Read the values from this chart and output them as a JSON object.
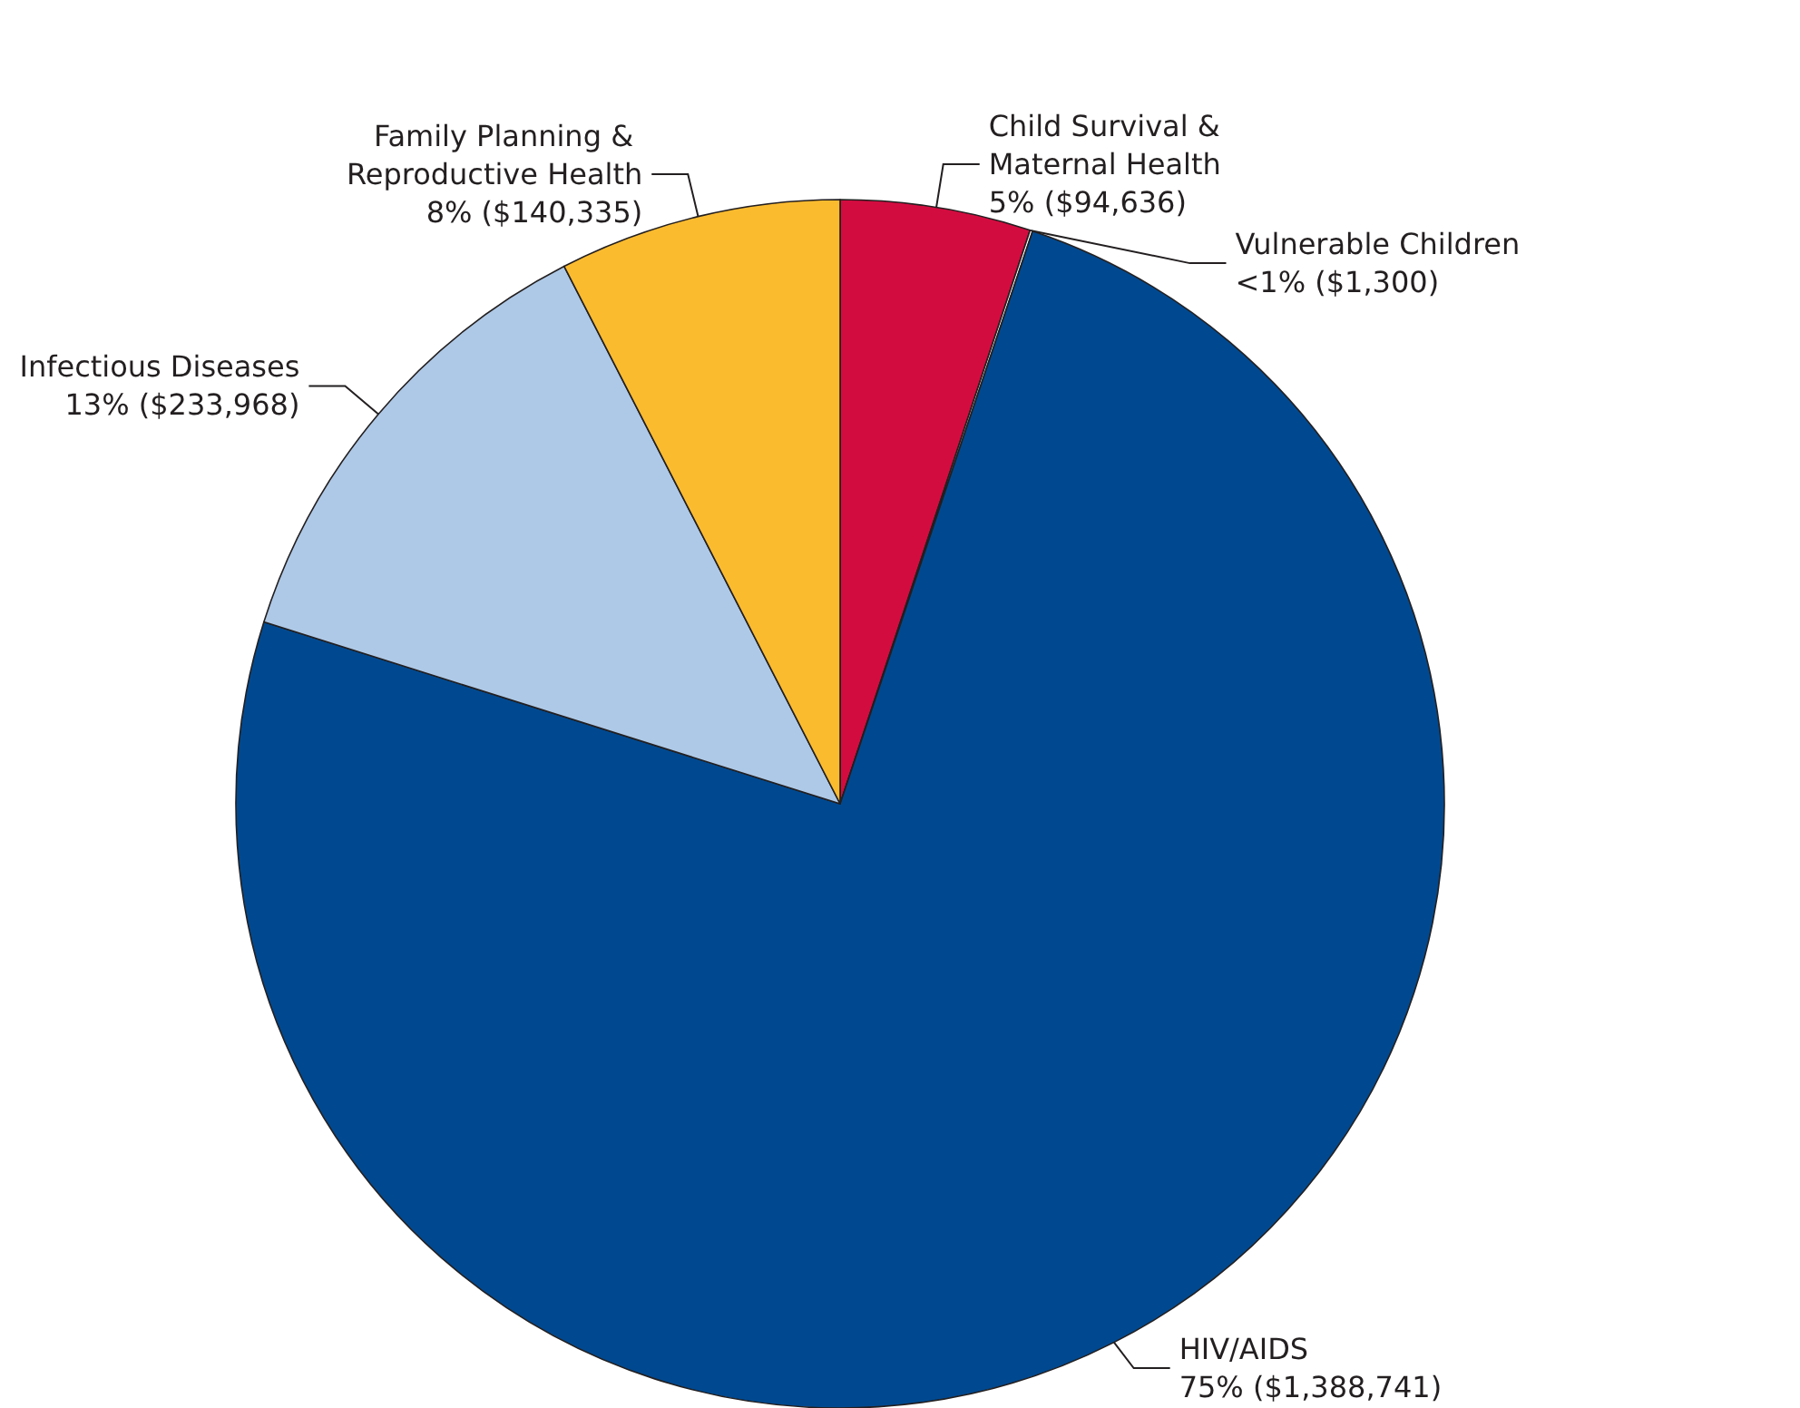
{
  "chart_data": {
    "type": "pie",
    "categories": [
      "Child Survival & Maternal Health",
      "Vulnerable Children",
      "HIV/AIDS",
      "Infectious Diseases",
      "Family Planning & Reproductive Health"
    ],
    "values": [
      94636,
      1300,
      1388741,
      233968,
      140335
    ],
    "value_labels": [
      "5% ($94,636)",
      "<1% ($1,300)",
      "75% ($1,388,741)",
      "13% ($233,968)",
      "8% ($140,335)"
    ],
    "colors": [
      "#d30c40",
      "#ffffff",
      "#004990",
      "#aec9e7",
      "#fbbb2f"
    ],
    "legend": false
  }
}
